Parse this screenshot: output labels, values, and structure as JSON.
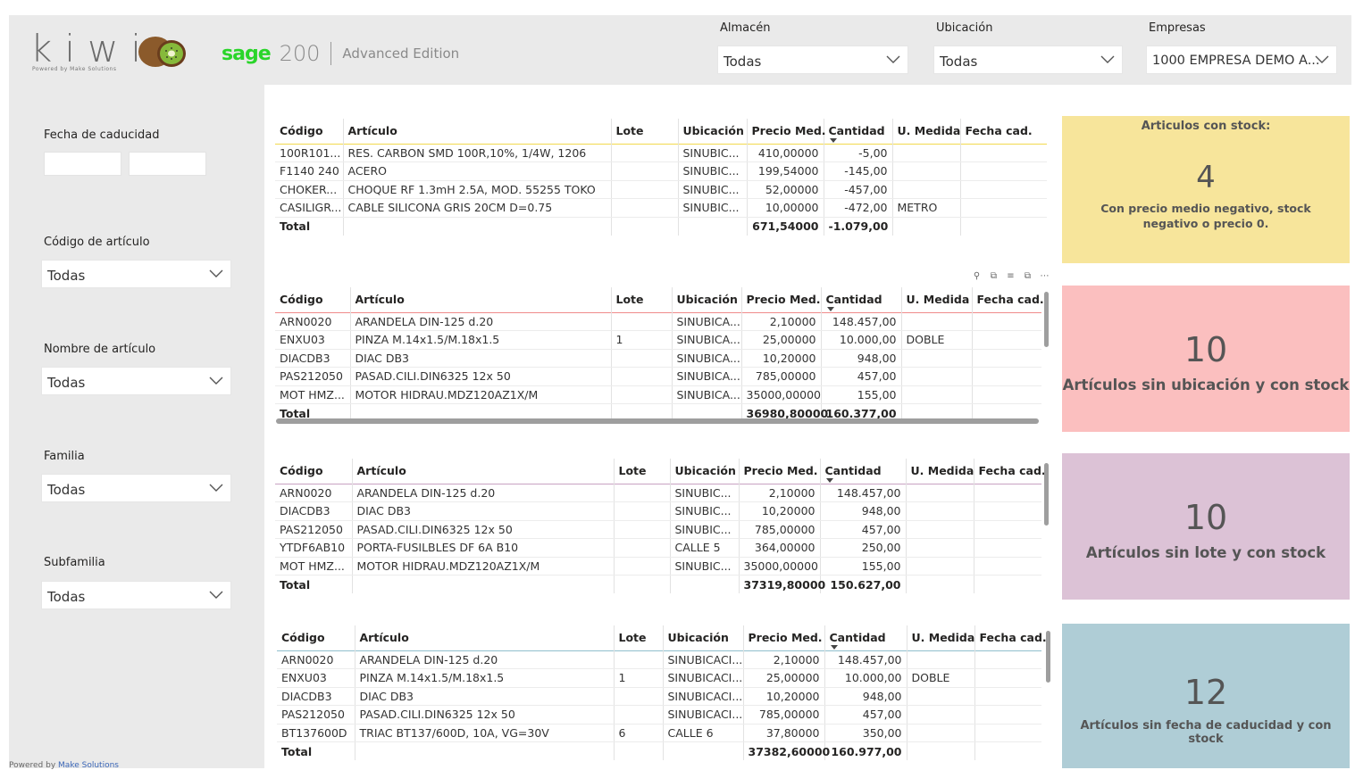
{
  "colors": {
    "card_yellow": "#f7e59b",
    "card_red": "#fbbfbf",
    "card_purple": "#dcc2d6",
    "card_blue": "#afcdd6",
    "sage_green": "#2ad52a",
    "kiwi_green": "#8dc63f"
  },
  "header": {
    "kiwi_logo": "kiwi",
    "kiwi_powered": "Powered by Make Solutions",
    "sage_word": "sage",
    "sage_number": "200",
    "sage_edition": "Advanced Edition",
    "almacen": {
      "label": "Almacén",
      "value": "Todas"
    },
    "ubicacion": {
      "label": "Ubicación",
      "value": "Todas"
    },
    "empresas": {
      "label": "Empresas",
      "value": "1000 EMPRESA DEMO A..."
    }
  },
  "filters": {
    "fecha_caducidad": {
      "label": "Fecha de caducidad"
    },
    "codigo_articulo": {
      "label": "Código de artículo",
      "value": "Todas"
    },
    "nombre_articulo": {
      "label": "Nombre de artículo",
      "value": "Todas"
    },
    "familia": {
      "label": "Familia",
      "value": "Todas"
    },
    "subfamilia": {
      "label": "Subfamilia",
      "value": "Todas"
    }
  },
  "table1": {
    "headers": [
      "Código",
      "Artículo",
      "Lote",
      "Ubicación",
      "Precio Med.",
      "Cantidad",
      "U. Medida",
      "Fecha cad."
    ],
    "rows": [
      [
        "100R101...",
        "RES. CARBON SMD 100R,10%, 1/4W, 1206",
        "",
        "SINUBIC...",
        "410,00000",
        "-5,00",
        "",
        ""
      ],
      [
        "F1140 240",
        "ACERO",
        "",
        "SINUBIC...",
        "199,54000",
        "-145,00",
        "",
        ""
      ],
      [
        "CHOKER...",
        "CHOQUE RF 1.3mH 2.5A, MOD. 55255 TOKO",
        "",
        "SINUBIC...",
        "52,00000",
        "-457,00",
        "",
        ""
      ],
      [
        "CASILIGR...",
        "CABLE SILICONA GRIS 20CM D=0.75",
        "",
        "SINUBIC...",
        "10,00000",
        "-472,00",
        "METRO",
        ""
      ]
    ],
    "total": [
      "Total",
      "",
      "",
      "",
      "671,54000",
      "-1.079,00",
      "",
      ""
    ]
  },
  "table2": {
    "headers": [
      "Código",
      "Artículo",
      "Lote",
      "Ubicación",
      "Precio Med.",
      "Cantidad",
      "U. Medida",
      "Fecha cad."
    ],
    "rows": [
      [
        "ARN0020",
        "ARANDELA DIN-125 d.20",
        "",
        "SINUBICA...",
        "2,10000",
        "148.457,00",
        "",
        ""
      ],
      [
        "ENXU03",
        "PINZA M.14x1.5/M.18x1.5",
        "1",
        "SINUBICA...",
        "25,00000",
        "10.000,00",
        "DOBLE",
        ""
      ],
      [
        "DIACDB3",
        "DIAC DB3",
        "",
        "SINUBICA...",
        "10,20000",
        "948,00",
        "",
        ""
      ],
      [
        "PAS212050",
        "PASAD.CILI.DIN6325 12x 50",
        "",
        "SINUBICA...",
        "785,00000",
        "457,00",
        "",
        ""
      ],
      [
        "MOT HMZ...",
        "MOTOR HIDRAU.MDZ120AZ1X/M",
        "",
        "SINUBICA...",
        "35000,00000",
        "155,00",
        "",
        ""
      ]
    ],
    "total": [
      "Total",
      "",
      "",
      "",
      "36980,80000",
      "160.377,00",
      "",
      ""
    ]
  },
  "table3": {
    "headers": [
      "Código",
      "Artículo",
      "Lote",
      "Ubicación",
      "Precio Med.",
      "Cantidad",
      "U. Medida",
      "Fecha cad."
    ],
    "rows": [
      [
        "ARN0020",
        "ARANDELA DIN-125 d.20",
        "",
        "SINUBIC...",
        "2,10000",
        "148.457,00",
        "",
        ""
      ],
      [
        "DIACDB3",
        "DIAC DB3",
        "",
        "SINUBIC...",
        "10,20000",
        "948,00",
        "",
        ""
      ],
      [
        "PAS212050",
        "PASAD.CILI.DIN6325 12x 50",
        "",
        "SINUBIC...",
        "785,00000",
        "457,00",
        "",
        ""
      ],
      [
        "YTDF6AB10",
        "PORTA-FUSILBLES DF 6A B10",
        "",
        "CALLE 5",
        "364,00000",
        "250,00",
        "",
        ""
      ],
      [
        "MOT HMZ...",
        "MOTOR HIDRAU.MDZ120AZ1X/M",
        "",
        "SINUBIC...",
        "35000,00000",
        "155,00",
        "",
        ""
      ]
    ],
    "total": [
      "Total",
      "",
      "",
      "",
      "37319,80000",
      "150.627,00",
      "",
      ""
    ]
  },
  "table4": {
    "headers": [
      "Código",
      "Artículo",
      "Lote",
      "Ubicación",
      "Precio Med.",
      "Cantidad",
      "U. Medida",
      "Fecha cad."
    ],
    "rows": [
      [
        "ARN0020",
        "ARANDELA DIN-125 d.20",
        "",
        "SINUBICACI...",
        "2,10000",
        "148.457,00",
        "",
        ""
      ],
      [
        "ENXU03",
        "PINZA M.14x1.5/M.18x1.5",
        "1",
        "SINUBICACI...",
        "25,00000",
        "10.000,00",
        "DOBLE",
        ""
      ],
      [
        "DIACDB3",
        "DIAC DB3",
        "",
        "SINUBICACI...",
        "10,20000",
        "948,00",
        "",
        ""
      ],
      [
        "PAS212050",
        "PASAD.CILI.DIN6325 12x 50",
        "",
        "SINUBICACI...",
        "785,00000",
        "457,00",
        "",
        ""
      ],
      [
        "BT137600D",
        "TRIAC BT137/600D, 10A, VG=30V",
        "6",
        "CALLE 6",
        "37,80000",
        "350,00",
        "",
        ""
      ]
    ],
    "total": [
      "Total",
      "",
      "",
      "",
      "37382,60000",
      "160.977,00",
      "",
      ""
    ]
  },
  "cards": {
    "card1": {
      "title": "Articulos con stock:",
      "value": "4",
      "subtitle": "Con precio medio negativo, stock negativo o precio 0."
    },
    "card2": {
      "value": "10",
      "subtitle": "Artículos sin ubicación y con stock"
    },
    "card3": {
      "value": "10",
      "subtitle": "Artículos sin lote y con stock"
    },
    "card4": {
      "value": "12",
      "subtitle": "Artículos sin fecha de caducidad y con stock"
    }
  },
  "footer": {
    "powered_by": "Powered by",
    "company": "Make Solutions"
  }
}
